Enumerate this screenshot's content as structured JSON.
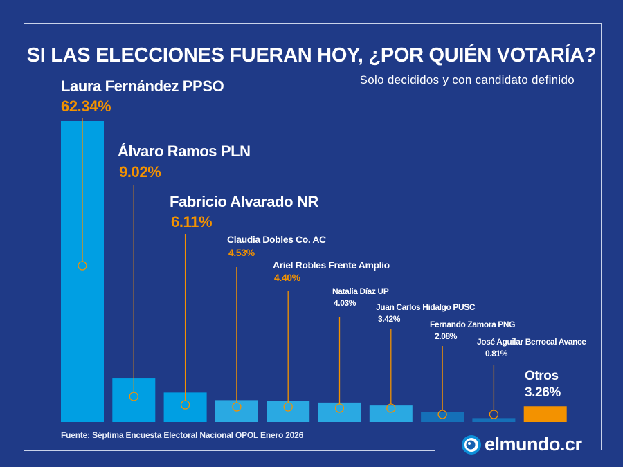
{
  "title": "SI LAS ELECCIONES FUERAN HOY, ¿POR QUIÉN VOTARÍA?",
  "subtitle": "Solo decididos y con candidato definido",
  "source": "Fuente: Séptima Encuesta Electoral Nacional OPOL Enero 2026",
  "logo": "elmundo.cr",
  "chart_data": {
    "type": "bar",
    "title": "SI LAS ELECCIONES FUERAN HOY, ¿POR QUIÉN VOTARÍA?",
    "xlabel": "",
    "ylabel": "",
    "ylim": [
      0,
      65
    ],
    "grid": false,
    "categories": [
      "Laura Fernández PPSO",
      "Álvaro Ramos PLN",
      "Fabricio Alvarado NR",
      "Claudia Dobles Co. AC",
      "Ariel Robles Frente Amplio",
      "Natalia Díaz UP",
      "Juan Carlos Hidalgo PUSC",
      "Fernando Zamora PNG",
      "José Aguilar Berrocal Avance",
      "Otros"
    ],
    "values": [
      62.34,
      9.02,
      6.11,
      4.53,
      4.4,
      4.03,
      3.42,
      2.08,
      0.81,
      3.26
    ],
    "data_labels": [
      "62.34%",
      "9.02%",
      "6.11%",
      "4.53%",
      "4.40%",
      "4.03%",
      "3.42%",
      "2.08%",
      "0.81%",
      "3.26%"
    ],
    "bar_colors": [
      "#009fe3",
      "#009fe3",
      "#009fe3",
      "#2aa9e2",
      "#2aa9e2",
      "#2aa9e2",
      "#2aa9e2",
      "#1570b8",
      "#1570b8",
      "#f39200"
    ],
    "accent_color": "#f39200"
  }
}
